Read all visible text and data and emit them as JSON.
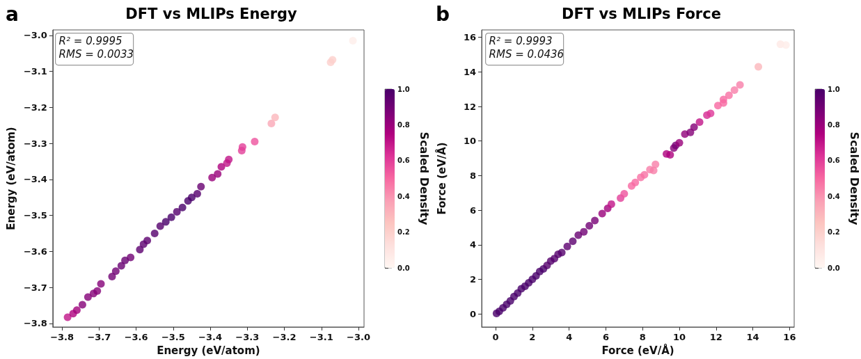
{
  "chart_data": [
    {
      "type": "scatter",
      "title": "DFT vs MLIPs Energy",
      "xlabel": "Energy (eV/atom)",
      "ylabel": "Energy (eV/atom)",
      "clabel": "Scaled Density",
      "annotations": [
        "a",
        "R² = 0.9995",
        "RMS = 0.0033"
      ],
      "marker": "circle",
      "grid": false,
      "xlim": [
        -3.825,
        -2.985
      ],
      "ylim": [
        -3.81,
        -2.985
      ],
      "xticks": [
        {
          "value": -3.8,
          "label": "−3.8"
        },
        {
          "value": -3.7,
          "label": "−3.7"
        },
        {
          "value": -3.6,
          "label": "−3.6"
        },
        {
          "value": -3.5,
          "label": "−3.5"
        },
        {
          "value": -3.4,
          "label": "−3.4"
        },
        {
          "value": -3.3,
          "label": "−3.3"
        },
        {
          "value": -3.2,
          "label": "−3.2"
        },
        {
          "value": -3.1,
          "label": "−3.1"
        },
        {
          "value": -3.0,
          "label": "−3.0"
        }
      ],
      "yticks": [
        {
          "value": -3.8,
          "label": "−3.8"
        },
        {
          "value": -3.7,
          "label": "−3.7"
        },
        {
          "value": -3.6,
          "label": "−3.6"
        },
        {
          "value": -3.5,
          "label": "−3.5"
        },
        {
          "value": -3.4,
          "label": "−3.4"
        },
        {
          "value": -3.3,
          "label": "−3.3"
        },
        {
          "value": -3.2,
          "label": "−3.2"
        },
        {
          "value": -3.1,
          "label": "−3.1"
        },
        {
          "value": -3.0,
          "label": "−3.0"
        }
      ],
      "clim": [
        0,
        1
      ],
      "cticks": [
        {
          "value": 0,
          "label": "0.0"
        },
        {
          "value": 0.2,
          "label": "0.2"
        },
        {
          "value": 0.4,
          "label": "0.4"
        },
        {
          "value": 0.6,
          "label": "0.6"
        },
        {
          "value": 0.8,
          "label": "0.8"
        },
        {
          "value": 1,
          "label": "1.0"
        }
      ],
      "x": [
        -3.785,
        -3.77,
        -3.76,
        -3.745,
        -3.73,
        -3.715,
        -3.705,
        -3.695,
        -3.665,
        -3.655,
        -3.64,
        -3.63,
        -3.615,
        -3.59,
        -3.58,
        -3.57,
        -3.55,
        -3.535,
        -3.52,
        -3.505,
        -3.49,
        -3.475,
        -3.46,
        -3.45,
        -3.435,
        -3.425,
        -3.395,
        -3.38,
        -3.37,
        -3.355,
        -3.35,
        -3.315,
        -3.313,
        -3.28,
        -3.235,
        -3.225,
        -3.075,
        -3.07,
        -3.015
      ],
      "values": [
        -3.783,
        -3.773,
        -3.763,
        -3.748,
        -3.727,
        -3.717,
        -3.71,
        -3.69,
        -3.67,
        -3.655,
        -3.64,
        -3.625,
        -3.617,
        -3.595,
        -3.58,
        -3.57,
        -3.55,
        -3.53,
        -3.518,
        -3.505,
        -3.49,
        -3.478,
        -3.46,
        -3.45,
        -3.44,
        -3.42,
        -3.395,
        -3.385,
        -3.365,
        -3.355,
        -3.345,
        -3.32,
        -3.31,
        -3.295,
        -3.245,
        -3.228,
        -3.075,
        -3.068,
        -3.015
      ],
      "cvalues": [
        0.7,
        0.75,
        0.78,
        0.85,
        0.85,
        0.85,
        0.85,
        0.85,
        0.9,
        0.9,
        0.92,
        0.92,
        0.9,
        0.95,
        0.95,
        0.95,
        0.97,
        0.97,
        1,
        1,
        0.97,
        1,
        1,
        1,
        0.97,
        0.92,
        0.8,
        0.8,
        0.75,
        0.7,
        0.7,
        0.6,
        0.6,
        0.55,
        0.35,
        0.3,
        0.2,
        0.2,
        0.05
      ]
    },
    {
      "type": "scatter",
      "title": "DFT vs MLIPs Force",
      "xlabel": "Force (eV/Å)",
      "ylabel": "Force (eV/Å)",
      "clabel": "Scaled Density",
      "annotations": [
        "b",
        "R² = 0.9993",
        "RMS = 0.0436"
      ],
      "marker": "circle",
      "grid": false,
      "xlim": [
        -0.76,
        16.25
      ],
      "ylim": [
        -0.76,
        16.43
      ],
      "xticks": [
        0,
        2,
        4,
        6,
        8,
        10,
        12,
        14,
        16
      ],
      "yticks": [
        0,
        2,
        4,
        6,
        8,
        10,
        12,
        14,
        16
      ],
      "clim": [
        0,
        1
      ],
      "cticks": [
        {
          "value": 0,
          "label": "0.0"
        },
        {
          "value": 0.2,
          "label": "0.2"
        },
        {
          "value": 0.4,
          "label": "0.4"
        },
        {
          "value": 0.6,
          "label": "0.6"
        },
        {
          "value": 0.8,
          "label": "0.8"
        },
        {
          "value": 1,
          "label": "1.0"
        }
      ],
      "x": [
        0.05,
        0.2,
        0.4,
        0.6,
        0.8,
        1.0,
        1.2,
        1.4,
        1.6,
        1.8,
        2.0,
        2.2,
        2.4,
        2.6,
        2.8,
        3.0,
        3.2,
        3.4,
        3.6,
        3.9,
        4.2,
        4.5,
        4.8,
        5.1,
        5.4,
        5.8,
        6.1,
        6.3,
        6.8,
        7.0,
        7.4,
        7.6,
        7.9,
        8.1,
        8.4,
        8.6,
        8.7,
        9.3,
        9.5,
        9.7,
        9.8,
        10.0,
        10.3,
        10.6,
        10.8,
        11.1,
        11.5,
        11.7,
        12.1,
        12.4,
        12.4,
        12.7,
        13.0,
        13.3,
        14.3,
        15.5,
        15.8
      ],
      "values": [
        0.03,
        0.15,
        0.35,
        0.55,
        0.75,
        1.0,
        1.2,
        1.45,
        1.6,
        1.8,
        2.0,
        2.2,
        2.45,
        2.6,
        2.8,
        3.05,
        3.2,
        3.45,
        3.55,
        3.9,
        4.2,
        4.55,
        4.75,
        5.1,
        5.4,
        5.8,
        6.1,
        6.35,
        6.7,
        6.95,
        7.4,
        7.6,
        7.9,
        8.05,
        8.35,
        8.3,
        8.65,
        9.25,
        9.2,
        9.6,
        9.75,
        9.9,
        10.4,
        10.5,
        10.8,
        11.1,
        11.5,
        11.6,
        12.05,
        12.2,
        12.4,
        12.65,
        12.95,
        13.25,
        14.3,
        15.6,
        15.55
      ],
      "cvalues": [
        1,
        1,
        1,
        1,
        1,
        1,
        1,
        1,
        1,
        1,
        1,
        1,
        1,
        1,
        0.97,
        0.97,
        0.97,
        0.97,
        0.97,
        0.95,
        0.95,
        0.92,
        0.9,
        0.9,
        0.88,
        0.8,
        0.78,
        0.7,
        0.6,
        0.55,
        0.5,
        0.5,
        0.48,
        0.48,
        0.45,
        0.45,
        0.45,
        0.75,
        0.75,
        0.85,
        0.88,
        0.8,
        0.82,
        0.85,
        0.85,
        0.7,
        0.65,
        0.62,
        0.5,
        0.5,
        0.5,
        0.48,
        0.45,
        0.45,
        0.3,
        0.08,
        0.06
      ]
    }
  ]
}
